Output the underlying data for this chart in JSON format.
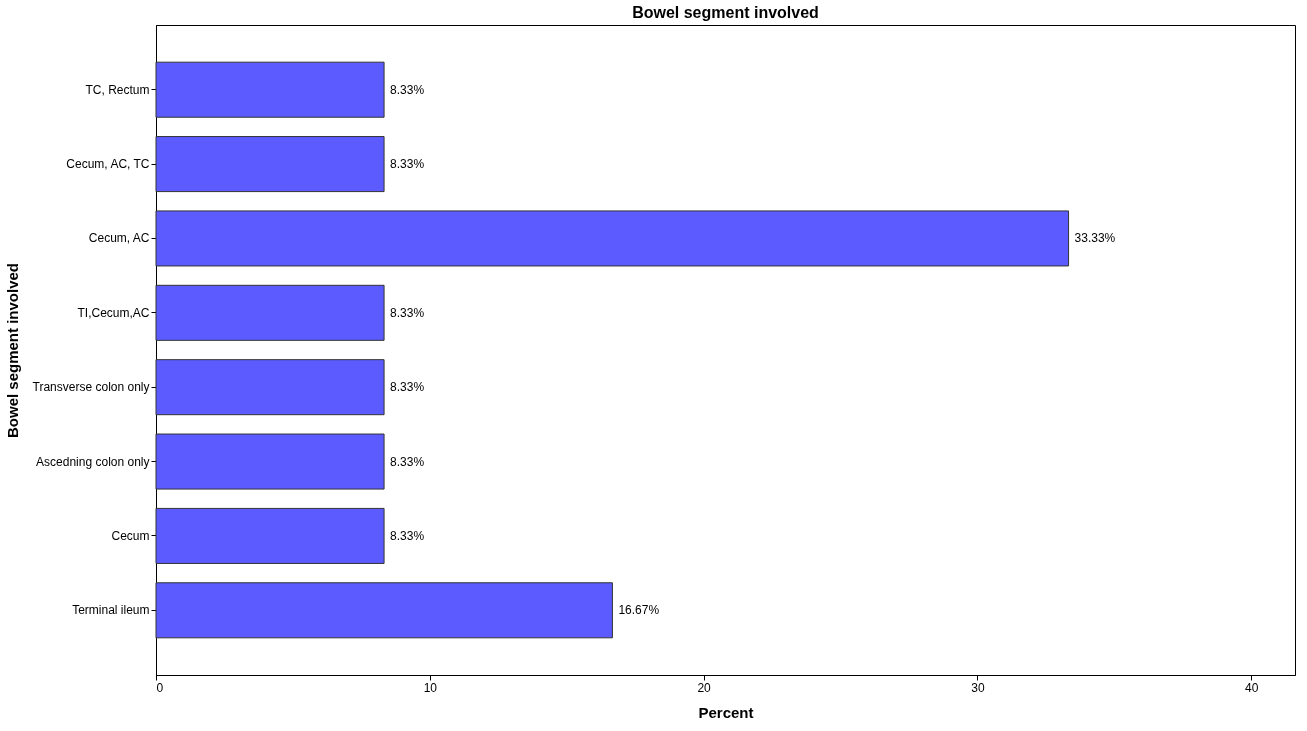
{
  "chart_data": {
    "type": "bar",
    "orientation": "horizontal",
    "title": "Bowel segment involved",
    "xlabel": "Percent",
    "ylabel": "Bowel segment involved",
    "categories": [
      "TC, Rectum",
      "Cecum, AC, TC",
      "Cecum, AC",
      "TI,Cecum,AC",
      "Transverse colon only",
      "Ascedning colon only",
      "Cecum",
      "Terminal ileum"
    ],
    "values": [
      8.33,
      8.33,
      33.33,
      8.33,
      8.33,
      8.33,
      8.33,
      16.67
    ],
    "value_labels": [
      "8.33%",
      "8.33%",
      "33.33%",
      "8.33%",
      "8.33%",
      "8.33%",
      "8.33%",
      "16.67%"
    ],
    "color": "#5b5bff",
    "xlim": [
      0,
      41.6
    ],
    "xticks": [
      0,
      10,
      20,
      30,
      40
    ]
  }
}
